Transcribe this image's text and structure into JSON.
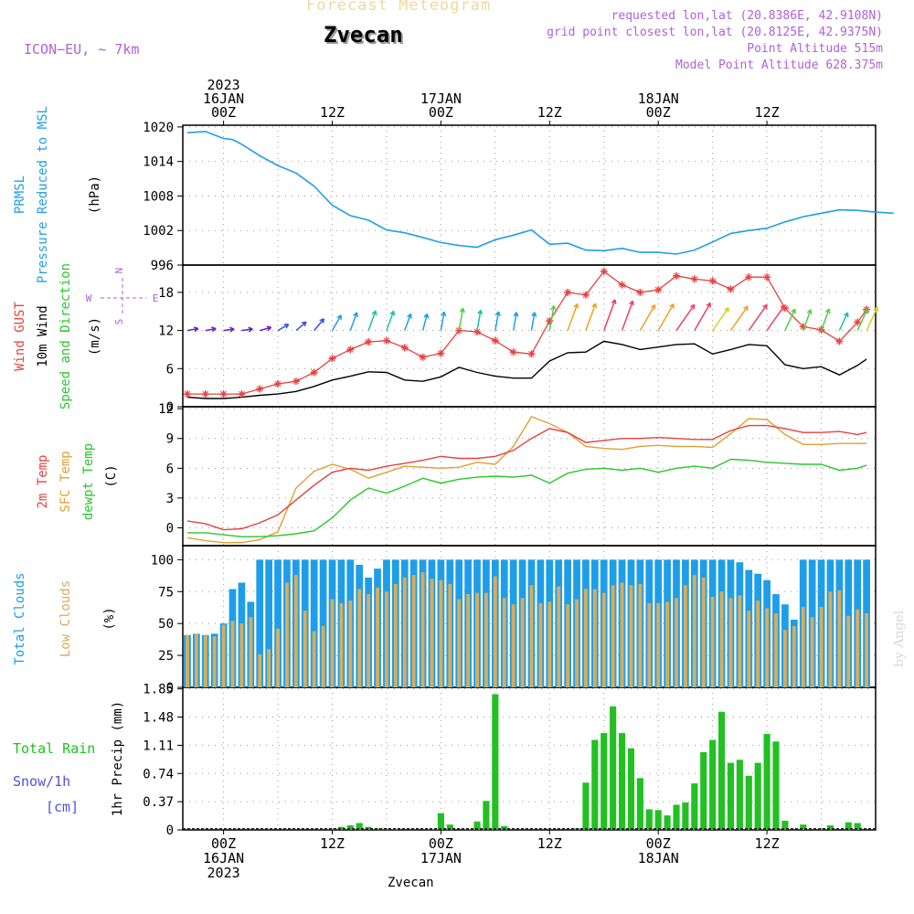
{
  "header": {
    "title": "Forecast Meteogram",
    "station": "Zvecan",
    "model": "ICON−EU,  ~ 7km",
    "requested": "requested lon,lat (20.8386E, 42.9108N)",
    "gridpoint": "grid point closest lon,lat (20.8125E, 42.9375N)",
    "altitude": "Point Altitude 515m",
    "model_altitude": "Model Point Altitude 628.375m",
    "watermark": "by Angel",
    "footer_station": "Zvecan"
  },
  "colors": {
    "pressure": "#1e9ee8",
    "gust": "#e84040",
    "wind": "#000000",
    "temp2m": "#e84040",
    "sfctemp": "#e0a030",
    "dewpt": "#28c828",
    "total_clouds": "#1e9ee8",
    "low_clouds": "#d9ac5c",
    "rain": "#22c022",
    "snow": "#5050e0",
    "side_purple": "#b060d8"
  },
  "time_axis": {
    "top_labels": [
      {
        "hour": 0,
        "lines": [
          "2023",
          "16JAN",
          "00Z"
        ]
      },
      {
        "hour": 12,
        "lines": [
          "12Z"
        ]
      },
      {
        "hour": 24,
        "lines": [
          "17JAN",
          "00Z"
        ]
      },
      {
        "hour": 36,
        "lines": [
          "12Z"
        ]
      },
      {
        "hour": 48,
        "lines": [
          "18JAN",
          "00Z"
        ]
      },
      {
        "hour": 60,
        "lines": [
          "12Z"
        ]
      }
    ],
    "bottom_labels": [
      {
        "hour": 0,
        "lines": [
          "00Z",
          "16JAN",
          "2023"
        ]
      },
      {
        "hour": 12,
        "lines": [
          "12Z"
        ]
      },
      {
        "hour": 24,
        "lines": [
          "00Z",
          "17JAN"
        ]
      },
      {
        "hour": 36,
        "lines": [
          "12Z"
        ]
      },
      {
        "hour": 48,
        "lines": [
          "00Z",
          "18JAN"
        ]
      },
      {
        "hour": 60,
        "lines": [
          "12Z"
        ]
      }
    ]
  },
  "panels": {
    "pressure": {
      "labels": [
        {
          "text": "PRMSL",
          "color": "#1e9ee8"
        },
        {
          "text": "Pressure Reduced to MSL",
          "color": "#1e9ee8"
        },
        {
          "text": "(hPa)",
          "color": "#000000"
        }
      ],
      "ticks": [
        "1020",
        "1014",
        "1008",
        "1002",
        "996"
      ]
    },
    "wind": {
      "labels": [
        {
          "text": "Wind GUST",
          "color": "#e84040"
        },
        {
          "text": "10m Wind",
          "color": "#000000"
        },
        {
          "text": "Speed and Direction",
          "color": "#28c828"
        },
        {
          "text": "(m/s)",
          "color": "#000000"
        }
      ],
      "ticks": [
        "18",
        "12",
        "6",
        "0"
      ],
      "compass": {
        "n": "N",
        "w": "W",
        "e": "E",
        "s": "S"
      }
    },
    "temperature": {
      "labels": [
        {
          "text": "2m Temp",
          "color": "#e84040"
        },
        {
          "text": "SFC Temp",
          "color": "#e0a030"
        },
        {
          "text": "dewpt Temp",
          "color": "#28c828"
        },
        {
          "text": "(C)",
          "color": "#000000"
        }
      ],
      "ticks": [
        "12",
        "9",
        "6",
        "3",
        "0"
      ]
    },
    "clouds": {
      "labels": [
        {
          "text": "Total Clouds",
          "color": "#1e9ee8"
        },
        {
          "text": "Low Clouds",
          "color": "#d9ac5c"
        },
        {
          "text": "(%)",
          "color": "#000000"
        }
      ],
      "ticks": [
        "100",
        "75",
        "50",
        "25",
        "0"
      ]
    },
    "precip": {
      "labels": [
        {
          "text": "Total  Rain",
          "color": "#22c022"
        },
        {
          "text": "Snow/1h",
          "color": "#5050e0"
        },
        {
          "text": "[cm]",
          "color": "#5050e0"
        },
        {
          "text": "1hr Precip (mm)",
          "color": "#000000"
        }
      ],
      "ticks": [
        "1.85",
        "1.48",
        "1.11",
        "0.74",
        "0.37",
        "0"
      ]
    }
  },
  "chart_data": [
    {
      "type": "line",
      "x": [
        -4,
        -2,
        0,
        1,
        2,
        4,
        6,
        8,
        10,
        12,
        14,
        16,
        18,
        20,
        22,
        24,
        26,
        28,
        30,
        32,
        34,
        36,
        38,
        40,
        42,
        44,
        46,
        48,
        50,
        52,
        54,
        56,
        58,
        60,
        62,
        64,
        66,
        68,
        70,
        72,
        74
      ],
      "series": [
        {
          "name": "PRMSL",
          "values": [
            1019,
            1019.2,
            1018,
            1017.8,
            1017,
            1015,
            1013.3,
            1012,
            1009.7,
            1006.4,
            1004.6,
            1003.8,
            1002.1,
            1001.6,
            1000.8,
            999.9,
            999.4,
            999.1,
            1000.4,
            1001.2,
            1002.1,
            999.6,
            999.8,
            998.6,
            998.5,
            998.9,
            998.2,
            998.2,
            997.9,
            998.6,
            1000,
            1001.5,
            1002,
            1002.4,
            1003.5,
            1004.4,
            1005,
            1005.6,
            1005.5,
            1005.2,
            1005
          ]
        }
      ],
      "xlabel": "",
      "ylabel": "(hPa)",
      "ylim": [
        996,
        1020
      ]
    },
    {
      "type": "line",
      "x": [
        -4,
        -2,
        0,
        2,
        4,
        6,
        8,
        10,
        12,
        14,
        16,
        18,
        20,
        22,
        24,
        26,
        28,
        30,
        32,
        34,
        36,
        38,
        40,
        42,
        44,
        46,
        48,
        50,
        52,
        54,
        56,
        58,
        60,
        62,
        64,
        66,
        68,
        70,
        71
      ],
      "series": [
        {
          "name": "Wind GUST",
          "values": [
            2,
            2,
            2,
            2,
            2.8,
            3.6,
            4,
            5.4,
            7.6,
            9,
            10.2,
            10.4,
            9.3,
            7.8,
            8.4,
            12,
            11.8,
            10.4,
            8.6,
            8.3,
            13.5,
            18,
            17.6,
            21.3,
            19.2,
            18,
            18.4,
            20.6,
            20.1,
            19.8,
            18.5,
            20.4,
            20.4,
            15.5,
            12.6,
            12.1,
            10.3,
            13.3,
            15.3
          ]
        },
        {
          "name": "10m Wind",
          "values": [
            1.5,
            1.3,
            1.3,
            1.5,
            1.8,
            2,
            2.4,
            3.2,
            4.2,
            4.8,
            5.5,
            5.4,
            4.2,
            4,
            4.7,
            6.2,
            5.4,
            4.8,
            4.5,
            4.5,
            7.2,
            8.5,
            8.6,
            10.3,
            9.8,
            9,
            9.4,
            9.8,
            9.9,
            8.3,
            9,
            9.8,
            9.6,
            6.6,
            6,
            6.3,
            5,
            6.5,
            7.5
          ]
        }
      ],
      "wind_barbs": {
        "dir_deg": [
          260,
          260,
          262,
          262,
          255,
          240,
          230,
          220,
          210,
          200,
          200,
          200,
          200,
          195,
          190,
          190,
          190,
          190,
          190,
          190,
          190,
          200,
          200,
          200,
          200,
          210,
          210,
          215,
          210,
          215,
          215,
          215,
          215,
          205,
          200,
          200,
          205,
          205,
          205
        ],
        "speed": [
          1.5,
          1.3,
          1.3,
          1.5,
          1.8,
          2,
          2.4,
          3.2,
          4.2,
          4.8,
          5.5,
          5.4,
          4.2,
          4,
          4.7,
          6.2,
          5.4,
          4.8,
          4.5,
          4.5,
          7.2,
          8.5,
          8.6,
          10.3,
          9.8,
          9,
          9.4,
          9.8,
          9.9,
          8.3,
          9,
          9.8,
          9.6,
          6.6,
          6,
          6.3,
          5,
          6.5,
          7.5
        ]
      },
      "xlabel": "",
      "ylabel": "(m/s)",
      "ylim": [
        0,
        22
      ]
    },
    {
      "type": "line",
      "x": [
        -4,
        -2,
        0,
        2,
        4,
        6,
        8,
        10,
        12,
        14,
        16,
        18,
        20,
        22,
        24,
        26,
        28,
        30,
        32,
        34,
        36,
        38,
        40,
        42,
        44,
        46,
        48,
        50,
        52,
        54,
        56,
        58,
        60,
        62,
        64,
        66,
        68,
        70,
        71
      ],
      "series": [
        {
          "name": "2m Temp",
          "values": [
            0.7,
            0.4,
            -0.2,
            -0.1,
            0.5,
            1.3,
            2.8,
            4.3,
            5.6,
            6,
            5.8,
            6.2,
            6.5,
            6.8,
            7.2,
            7,
            7,
            7.2,
            7.8,
            9,
            10,
            9.6,
            8.6,
            8.8,
            9,
            9,
            9.1,
            9,
            8.9,
            8.9,
            9.8,
            10.3,
            10.3,
            10,
            9.6,
            9.6,
            9.7,
            9.4,
            9.6
          ]
        },
        {
          "name": "SFC Temp",
          "values": [
            -1,
            -1.3,
            -1.5,
            -1.5,
            -1.2,
            -0.4,
            4,
            5.7,
            6.4,
            5.9,
            5,
            5.6,
            6.2,
            6.1,
            6,
            6.1,
            6.6,
            6.4,
            8.2,
            11.2,
            10.5,
            9.6,
            8.2,
            8,
            7.9,
            8.2,
            8.3,
            8.2,
            8.2,
            8.1,
            9.5,
            11,
            10.9,
            9.4,
            8.4,
            8.4,
            8.5,
            8.5,
            8.5
          ]
        },
        {
          "name": "dewpt Temp",
          "values": [
            -0.5,
            -0.5,
            -0.7,
            -0.9,
            -0.9,
            -0.8,
            -0.6,
            -0.3,
            1,
            2.8,
            4,
            3.5,
            4.2,
            5,
            4.5,
            4.9,
            5.1,
            5.2,
            5.1,
            5.3,
            4.5,
            5.5,
            5.9,
            6,
            5.8,
            6,
            5.6,
            6,
            6.2,
            6,
            6.9,
            6.8,
            6.6,
            6.5,
            6.4,
            6.4,
            5.8,
            6,
            6.3
          ]
        }
      ],
      "xlabel": "",
      "ylabel": "(C)",
      "ylim": [
        -1.8,
        12
      ]
    },
    {
      "type": "bar",
      "x": [
        -4,
        -3,
        -2,
        -1,
        0,
        1,
        2,
        3,
        4,
        5,
        6,
        7,
        8,
        9,
        10,
        11,
        12,
        13,
        14,
        15,
        16,
        17,
        18,
        19,
        20,
        21,
        22,
        23,
        24,
        25,
        26,
        27,
        28,
        29,
        30,
        31,
        32,
        33,
        34,
        35,
        36,
        37,
        38,
        39,
        40,
        41,
        42,
        43,
        44,
        45,
        46,
        47,
        48,
        49,
        50,
        51,
        52,
        53,
        54,
        55,
        56,
        57,
        58,
        59,
        60,
        61,
        62,
        63,
        64,
        65,
        66,
        67,
        68,
        69,
        70,
        71
      ],
      "series": [
        {
          "name": "Total Clouds",
          "values": [
            41,
            42,
            41,
            42,
            50,
            77,
            82,
            67,
            100,
            100,
            100,
            100,
            100,
            100,
            100,
            100,
            100,
            100,
            100,
            96,
            86,
            93,
            100,
            100,
            100,
            100,
            100,
            100,
            100,
            100,
            100,
            100,
            100,
            100,
            100,
            100,
            100,
            100,
            100,
            100,
            100,
            100,
            100,
            100,
            100,
            100,
            100,
            100,
            100,
            100,
            100,
            100,
            100,
            100,
            100,
            100,
            100,
            100,
            100,
            100,
            100,
            98,
            92,
            89,
            84,
            73,
            65,
            53,
            100,
            100,
            100,
            100,
            100,
            100,
            100,
            100
          ]
        },
        {
          "name": "Low Clouds",
          "values": [
            41,
            42,
            41,
            40,
            49,
            52,
            50,
            55,
            26,
            30,
            46,
            82,
            88,
            60,
            44,
            48,
            69,
            66,
            68,
            77,
            73,
            78,
            75,
            81,
            86,
            88,
            90,
            85,
            84,
            81,
            69,
            73,
            74,
            74,
            87,
            70,
            65,
            70,
            80,
            66,
            67,
            79,
            65,
            69,
            77,
            77,
            74,
            80,
            82,
            80,
            81,
            66,
            66,
            67,
            70,
            80,
            88,
            86,
            71,
            75,
            70,
            72,
            60,
            68,
            62,
            58,
            45,
            48,
            63,
            55,
            63,
            75,
            76,
            56,
            61,
            58
          ]
        }
      ],
      "xlabel": "",
      "ylabel": "(%)",
      "ylim": [
        0,
        100
      ]
    },
    {
      "type": "bar",
      "x": [
        -4,
        -3,
        -2,
        -1,
        0,
        1,
        2,
        3,
        4,
        5,
        6,
        7,
        8,
        9,
        10,
        11,
        12,
        13,
        14,
        15,
        16,
        17,
        18,
        19,
        20,
        21,
        22,
        23,
        24,
        25,
        26,
        27,
        28,
        29,
        30,
        31,
        32,
        33,
        34,
        35,
        36,
        37,
        38,
        39,
        40,
        41,
        42,
        43,
        44,
        45,
        46,
        47,
        48,
        49,
        50,
        51,
        52,
        53,
        54,
        55,
        56,
        57,
        58,
        59,
        60,
        61,
        62,
        63,
        64,
        65,
        66,
        67,
        68,
        69,
        70,
        71
      ],
      "series": [
        {
          "name": "Total Rain",
          "values": [
            0,
            0,
            0,
            0,
            0,
            0,
            0,
            0,
            0,
            0,
            0,
            0,
            0,
            0,
            0,
            0,
            0.02,
            0.04,
            0.06,
            0.09,
            0.04,
            0.02,
            0.02,
            0.01,
            0,
            0,
            0,
            0.01,
            0.22,
            0.07,
            0,
            0.01,
            0.11,
            0.38,
            1.78,
            0.05,
            0,
            0,
            0,
            0,
            0,
            0,
            0,
            0.02,
            0.62,
            1.18,
            1.27,
            1.62,
            1.27,
            1.07,
            0.68,
            0.27,
            0.26,
            0.19,
            0.33,
            0.36,
            0.61,
            1.02,
            1.18,
            1.55,
            0.88,
            0.92,
            0.71,
            0.88,
            1.26,
            1.16,
            0.12,
            0,
            0.07,
            0,
            0.02,
            0.06,
            0,
            0.1,
            0.09,
            0
          ]
        },
        {
          "name": "Snow/1h",
          "values": [
            0,
            0,
            0,
            0,
            0,
            0,
            0,
            0,
            0,
            0,
            0,
            0,
            0,
            0,
            0,
            0,
            0,
            0,
            0,
            0,
            0,
            0,
            0,
            0,
            0,
            0,
            0,
            0,
            0,
            0,
            0,
            0,
            0,
            0,
            0,
            0,
            0,
            0,
            0,
            0,
            0,
            0,
            0,
            0,
            0,
            0,
            0,
            0,
            0,
            0,
            0,
            0,
            0,
            0,
            0,
            0,
            0,
            0,
            0,
            0,
            0,
            0,
            0,
            0,
            0,
            0,
            0,
            0,
            0,
            0,
            0,
            0,
            0,
            0,
            0,
            0
          ]
        }
      ],
      "xlabel": "",
      "ylabel": "1hr Precip (mm)",
      "ylim": [
        0,
        1.85
      ]
    }
  ]
}
